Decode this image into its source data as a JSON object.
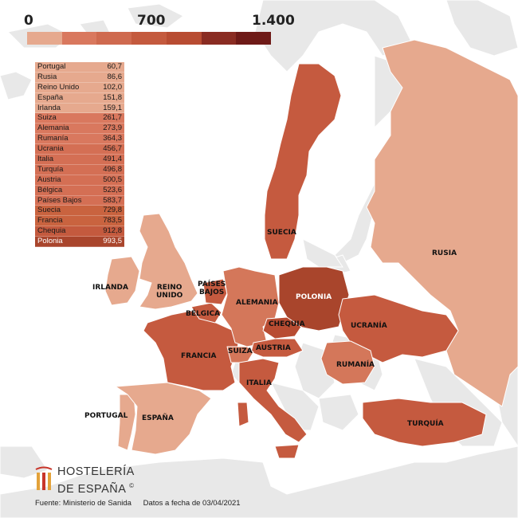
{
  "scale": {
    "labels": [
      "0",
      "700",
      "1.400"
    ],
    "colors": [
      "#e6a98e",
      "#d9785e",
      "#cf6a4f",
      "#c45a3e",
      "#b84c32",
      "#8a2c22",
      "#6e1a17"
    ]
  },
  "colors": {
    "land": "#e8e8e8",
    "sea": "#ffffff",
    "border": "#ffffff",
    "light": "#e6a98e",
    "mid": "#d4775a",
    "dark": "#c55a3f",
    "darker": "#a9452c"
  },
  "table": {
    "rows": [
      {
        "country": "Portugal",
        "value": "60,7"
      },
      {
        "country": "Rusia",
        "value": "86,6"
      },
      {
        "country": "Reino Unido",
        "value": "102,0"
      },
      {
        "country": "España",
        "value": "151,8"
      },
      {
        "country": "Irlanda",
        "value": "159,1"
      },
      {
        "country": "Suiza",
        "value": "261,7"
      },
      {
        "country": "Alemania",
        "value": "273,9"
      },
      {
        "country": "Rumanía",
        "value": "364,3"
      },
      {
        "country": "Ucrania",
        "value": "456,7"
      },
      {
        "country": "Italia",
        "value": "491,4"
      },
      {
        "country": "Turquía",
        "value": "496,8"
      },
      {
        "country": "Austria",
        "value": "500,5"
      },
      {
        "country": "Bélgica",
        "value": "523,6"
      },
      {
        "country": "Países Bajos",
        "value": "583,7"
      },
      {
        "country": "Suecia",
        "value": "729,8"
      },
      {
        "country": "Francia",
        "value": "783,5"
      },
      {
        "country": "Chequia",
        "value": "912,8"
      },
      {
        "country": "Polonia",
        "value": "993,5"
      }
    ]
  },
  "labels": {
    "suecia": "SUECIA",
    "rusia": "RUSIA",
    "irlanda": "IRLANDA",
    "reino_unido": "REINO\nUNIDO",
    "paises_bajos": "PAÍSES\nBAJOS",
    "belgica": "BÉLGICA",
    "alemania": "ALEMANIA",
    "polonia": "POLONIA",
    "chequia": "CHEQUIA",
    "ucrania": "UCRANÍA",
    "francia": "FRANCIA",
    "suiza": "SUIZA",
    "austria": "AUSTRIA",
    "rumania": "RUMANÍA",
    "italia": "ITALIA",
    "portugal": "PORTUGAL",
    "espana": "ESPAÑA",
    "turquia": "TURQUÍA"
  },
  "logo": {
    "line1": "HOSTELERÍA",
    "line2": "DE ESPAÑA",
    "mark": "©",
    "bar_colors": [
      "#e3a23a",
      "#c8352a",
      "#e3a23a"
    ]
  },
  "footer": {
    "source": "Fuente: Ministerio de Sanida",
    "date": "Datos a fecha de 03/04/2021"
  }
}
